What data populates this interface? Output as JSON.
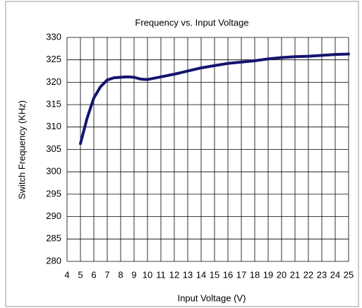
{
  "chart_data": {
    "type": "line",
    "title": "Frequency vs. Input Voltage",
    "xlabel": "Input Voltage (V)",
    "ylabel": "Switch Frequency (KHz)",
    "x": [
      5,
      5.5,
      6,
      6.5,
      7,
      7.5,
      8,
      8.5,
      9,
      9.5,
      10,
      11,
      12,
      13,
      14,
      15,
      16,
      17,
      18,
      19,
      20,
      21,
      22,
      23,
      24,
      25
    ],
    "series": [
      {
        "name": "Switch Frequency",
        "color": "#14146e",
        "values": [
          306.3,
          312,
          316.5,
          319,
          320.5,
          321,
          321.1,
          321.2,
          321.1,
          320.7,
          320.6,
          321.2,
          321.8,
          322.5,
          323.2,
          323.7,
          324.2,
          324.5,
          324.8,
          325.2,
          325.5,
          325.7,
          325.8,
          326,
          326.2,
          326.3
        ]
      }
    ],
    "xlim": [
      4,
      25
    ],
    "xticks": [
      4,
      5,
      6,
      7,
      8,
      9,
      10,
      11,
      12,
      13,
      14,
      15,
      16,
      17,
      18,
      19,
      20,
      21,
      22,
      23,
      24,
      25
    ],
    "ylim": [
      280,
      330
    ],
    "yticks": [
      280,
      285,
      290,
      295,
      300,
      305,
      310,
      315,
      320,
      325,
      330
    ],
    "grid": true
  }
}
